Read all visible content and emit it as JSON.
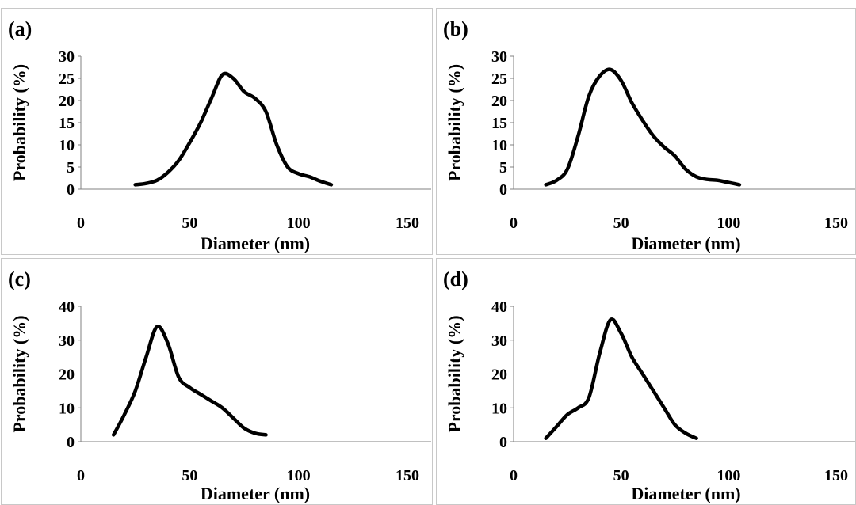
{
  "chart_data": [
    {
      "type": "line",
      "panel_label": "(a)",
      "xlabel": "Diameter (nm)",
      "ylabel": "Probability  (%)",
      "xlim": [
        0,
        150
      ],
      "ylim": [
        0,
        30
      ],
      "xticks": [
        "0",
        "50",
        "100",
        "150"
      ],
      "yticks": [
        "0",
        "5",
        "10",
        "15",
        "20",
        "25",
        "30"
      ],
      "grid": false,
      "legend": "none",
      "line_color": "#000000",
      "series": [
        {
          "x": [
            25,
            30,
            35,
            40,
            45,
            50,
            55,
            60,
            65,
            70,
            75,
            80,
            85,
            90,
            95,
            100,
            105,
            110,
            115
          ],
          "y": [
            1,
            1.3,
            2,
            3.8,
            6.5,
            10.5,
            15,
            20.5,
            25.8,
            25,
            22,
            20.5,
            17.5,
            10,
            5,
            3.5,
            2.8,
            1.8,
            1
          ]
        }
      ]
    },
    {
      "type": "line",
      "panel_label": "(b)",
      "xlabel": "Diameter (nm)",
      "ylabel": "Probability  (%)",
      "xlim": [
        0,
        150
      ],
      "ylim": [
        0,
        30
      ],
      "xticks": [
        "0",
        "50",
        "100",
        "150"
      ],
      "yticks": [
        "0",
        "5",
        "10",
        "15",
        "20",
        "25",
        "30"
      ],
      "grid": false,
      "legend": "none",
      "line_color": "#000000",
      "series": [
        {
          "x": [
            15,
            20,
            25,
            30,
            35,
            40,
            45,
            50,
            55,
            60,
            65,
            70,
            75,
            80,
            85,
            90,
            95,
            100,
            105
          ],
          "y": [
            1,
            2,
            4.5,
            12,
            21,
            25.5,
            27,
            24.5,
            19.5,
            15.5,
            12,
            9.5,
            7.5,
            4.5,
            2.8,
            2.2,
            2,
            1.5,
            1
          ]
        }
      ]
    },
    {
      "type": "line",
      "panel_label": "(c)",
      "xlabel": "Diameter (nm)",
      "ylabel": "Probability  (%)",
      "xlim": [
        0,
        150
      ],
      "ylim": [
        0,
        40
      ],
      "xticks": [
        "0",
        "50",
        "100",
        "150"
      ],
      "yticks": [
        "0",
        "10",
        "20",
        "30",
        "40"
      ],
      "grid": false,
      "legend": "none",
      "line_color": "#000000",
      "series": [
        {
          "x": [
            15,
            20,
            25,
            30,
            35,
            40,
            45,
            50,
            55,
            60,
            65,
            70,
            75,
            80,
            85
          ],
          "y": [
            2,
            8,
            15,
            25,
            34,
            29,
            19,
            16,
            14,
            12,
            10,
            7,
            4,
            2.5,
            2
          ]
        }
      ]
    },
    {
      "type": "line",
      "panel_label": "(d)",
      "xlabel": "Diameter (nm)",
      "ylabel": "Probability  (%)",
      "xlim": [
        0,
        150
      ],
      "ylim": [
        0,
        40
      ],
      "xticks": [
        "0",
        "50",
        "100",
        "150"
      ],
      "yticks": [
        "0",
        "10",
        "20",
        "30",
        "40"
      ],
      "grid": false,
      "legend": "none",
      "line_color": "#000000",
      "series": [
        {
          "x": [
            15,
            20,
            25,
            30,
            35,
            40,
            45,
            50,
            55,
            60,
            65,
            70,
            75,
            80,
            85
          ],
          "y": [
            1,
            4.5,
            8,
            10,
            13,
            26,
            36,
            32,
            25,
            20,
            15,
            10,
            5,
            2.5,
            1
          ]
        }
      ]
    }
  ]
}
